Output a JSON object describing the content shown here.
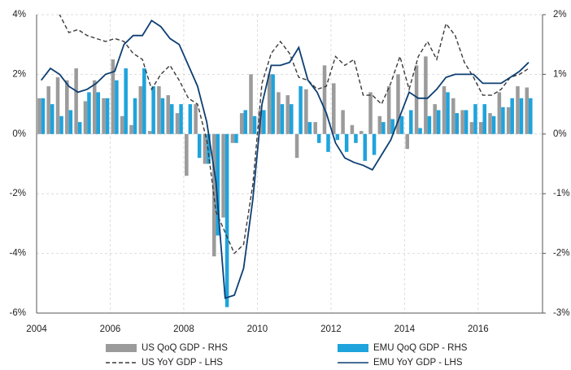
{
  "chart_data": {
    "type": "bar",
    "x": [
      2004,
      2004.25,
      2004.5,
      2004.75,
      2005,
      2005.25,
      2005.5,
      2005.75,
      2006,
      2006.25,
      2006.5,
      2006.75,
      2007,
      2007.25,
      2007.5,
      2007.75,
      2008,
      2008.25,
      2008.5,
      2008.75,
      2009,
      2009.25,
      2009.5,
      2009.75,
      2010,
      2010.25,
      2010.5,
      2010.75,
      2011,
      2011.25,
      2011.5,
      2011.75,
      2012,
      2012.25,
      2012.5,
      2012.75,
      2013,
      2013.25,
      2013.5,
      2013.75,
      2014,
      2014.25,
      2014.5,
      2014.75,
      2015,
      2015.25,
      2015.5,
      2015.75,
      2016,
      2016.25,
      2016.5,
      2016.75,
      2017,
      2017.25
    ],
    "series": [
      {
        "name": "US QoQ GDP - RHS",
        "type": "bar",
        "axis": "y2",
        "color": "#9b9b9b",
        "values": [
          0.6,
          0.8,
          0.95,
          0.9,
          1.1,
          0.55,
          0.9,
          0.6,
          1.25,
          0.3,
          0.15,
          0.8,
          0.05,
          0.8,
          0.65,
          0.35,
          -0.7,
          0.5,
          -0.5,
          -2.05,
          -1.4,
          -0.15,
          0.35,
          1.0,
          0.4,
          1.0,
          0.7,
          0.65,
          -0.4,
          0.75,
          0.2,
          1.15,
          0.85,
          0.4,
          0.15,
          0.05,
          0.7,
          0.3,
          0.8,
          1.0,
          -0.25,
          1.15,
          1.3,
          0.5,
          0.8,
          0.6,
          0.4,
          0.2,
          0.2,
          0.35,
          0.7,
          0.45,
          0.8,
          0.78
        ]
      },
      {
        "name": "EMU QoQ GDP - RHS",
        "type": "bar",
        "axis": "y2",
        "color": "#1fa3dc",
        "values": [
          0.6,
          0.5,
          0.3,
          0.4,
          0.2,
          0.7,
          0.7,
          0.6,
          0.9,
          1.1,
          0.6,
          1.1,
          0.8,
          0.6,
          0.5,
          0.5,
          0.5,
          -0.4,
          -0.5,
          -1.7,
          -2.9,
          -0.15,
          0.4,
          0.3,
          0.4,
          1.0,
          0.5,
          0.5,
          0.8,
          0.2,
          -0.15,
          -0.3,
          -0.1,
          -0.3,
          -0.15,
          -0.45,
          -0.35,
          0.2,
          0.25,
          0.3,
          0.4,
          0.1,
          0.3,
          0.4,
          0.7,
          0.35,
          0.4,
          0.5,
          0.5,
          0.3,
          0.45,
          0.6,
          0.6,
          0.6
        ]
      },
      {
        "name": "US YoY GDP - LHS",
        "type": "line",
        "dash": true,
        "color": "#3a3a3a",
        "values": [
          4.3,
          4.2,
          4.0,
          3.4,
          3.5,
          3.3,
          3.2,
          3.1,
          3.2,
          3.1,
          2.7,
          2.5,
          1.5,
          2.0,
          2.3,
          1.8,
          1.2,
          1.0,
          -0.2,
          -2.6,
          -3.3,
          -4.0,
          -3.7,
          -1.7,
          1.7,
          2.7,
          3.1,
          2.7,
          1.9,
          1.8,
          1.5,
          1.6,
          2.6,
          2.3,
          2.5,
          1.3,
          1.3,
          1.0,
          1.7,
          2.6,
          1.5,
          2.6,
          3.1,
          2.5,
          3.7,
          3.3,
          2.4,
          1.9,
          1.3,
          1.3,
          1.5,
          1.9,
          2.0,
          2.2
        ]
      },
      {
        "name": "EMU YoY GDP - LHS",
        "type": "line",
        "dash": false,
        "color": "#0d3f73",
        "values": [
          1.8,
          2.2,
          2.0,
          1.6,
          1.4,
          1.5,
          1.7,
          2.0,
          2.1,
          3.0,
          3.3,
          3.3,
          3.8,
          3.6,
          3.2,
          3.0,
          2.3,
          1.6,
          0.4,
          -1.6,
          -5.5,
          -5.4,
          -4.5,
          -2.2,
          1.0,
          2.3,
          2.3,
          2.4,
          2.9,
          1.8,
          1.4,
          0.7,
          -0.3,
          -0.8,
          -0.95,
          -1.05,
          -1.2,
          -0.7,
          -0.2,
          0.6,
          1.4,
          1.2,
          1.2,
          1.5,
          1.9,
          2.0,
          2.0,
          2.0,
          1.7,
          1.7,
          1.7,
          1.9,
          2.1,
          2.4
        ]
      }
    ],
    "xlim": [
      2004,
      2017.75
    ],
    "xticks": [
      2004,
      2006,
      2008,
      2010,
      2012,
      2014,
      2016
    ],
    "ylim": [
      -6,
      4
    ],
    "yticks": [
      {
        "value": -6,
        "label": "-6%"
      },
      {
        "value": -4,
        "label": "-4%"
      },
      {
        "value": -2,
        "label": "-2%"
      },
      {
        "value": 0,
        "label": "0%"
      },
      {
        "value": 2,
        "label": "2%"
      },
      {
        "value": 4,
        "label": "4%"
      }
    ],
    "y2lim": [
      -3,
      2
    ],
    "y2ticks": [
      {
        "value": -3,
        "label": "-3%"
      },
      {
        "value": -2,
        "label": "-2%"
      },
      {
        "value": -1,
        "label": "-1%"
      },
      {
        "value": 0,
        "label": "0%"
      },
      {
        "value": 1,
        "label": "1%"
      },
      {
        "value": 2,
        "label": "2%"
      }
    ],
    "grid": true,
    "legend": "bottom"
  }
}
